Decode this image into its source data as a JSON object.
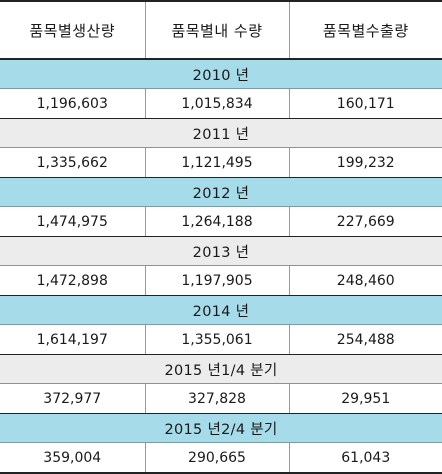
{
  "columns": [
    "품목별생산량",
    "품목별내 수량",
    "품목별수출량"
  ],
  "periods": [
    {
      "label": "2010 년",
      "values": [
        "1,196,603",
        "1,015,834",
        "160,171"
      ]
    },
    {
      "label": "2011 년",
      "values": [
        "1,335,662",
        "1,121,495",
        "199,232"
      ]
    },
    {
      "label": "2012 년",
      "values": [
        "1,474,975",
        "1,264,188",
        "227,669"
      ]
    },
    {
      "label": "2013 년",
      "values": [
        "1,472,898",
        "1,197,905",
        "248,460"
      ]
    },
    {
      "label": "2014 년",
      "values": [
        "1,614,197",
        "1,355,061",
        "254,488"
      ]
    },
    {
      "label": "2015 년1/4 분기",
      "values": [
        "372,977",
        "327,828",
        "29,951"
      ]
    },
    {
      "label": "2015 년2/4 분기",
      "values": [
        "359,004",
        "290,665",
        "61,043"
      ]
    }
  ],
  "colors": {
    "period_band_blue": "#a6dbea",
    "period_band_gray": "#ececec",
    "rule": "#222222"
  }
}
